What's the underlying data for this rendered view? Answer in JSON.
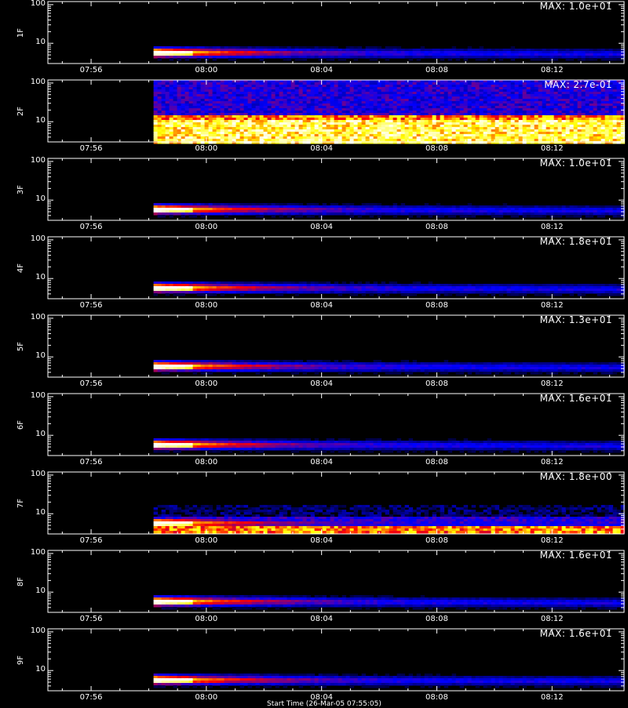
{
  "chart_data": {
    "type": "heatmap",
    "x_range": [
      "07:54:30",
      "08:14:30"
    ],
    "x_ticks": [
      "07:56",
      "08:00",
      "08:04",
      "08:08",
      "08:12"
    ],
    "y_scale": "log",
    "y_ticks": [
      "100",
      "10"
    ],
    "data_start": "07:58:10",
    "colormap": [
      "#000000",
      "#0000ff",
      "#ff0000",
      "#ffff00",
      "#ffffff"
    ],
    "panels": [
      {
        "label": "1F",
        "max": "MAX: 1.0e+01",
        "pattern": "decay"
      },
      {
        "label": "2F",
        "max": "MAX: 2.7e-01",
        "pattern": "noisy"
      },
      {
        "label": "3F",
        "max": "MAX: 1.0e+01",
        "pattern": "decay"
      },
      {
        "label": "4F",
        "max": "MAX: 1.8e+01",
        "pattern": "decay"
      },
      {
        "label": "5F",
        "max": "MAX: 1.3e+01",
        "pattern": "decay"
      },
      {
        "label": "6F",
        "max": "MAX: 1.6e+01",
        "pattern": "decay"
      },
      {
        "label": "7F",
        "max": "MAX: 1.8e+00",
        "pattern": "decay-noisy-low"
      },
      {
        "label": "8F",
        "max": "MAX: 1.6e+01",
        "pattern": "decay"
      },
      {
        "label": "9F",
        "max": "MAX: 1.6e+01",
        "pattern": "decay"
      }
    ]
  },
  "footer": "Start Time (26-Mar-05 07:55:05)"
}
